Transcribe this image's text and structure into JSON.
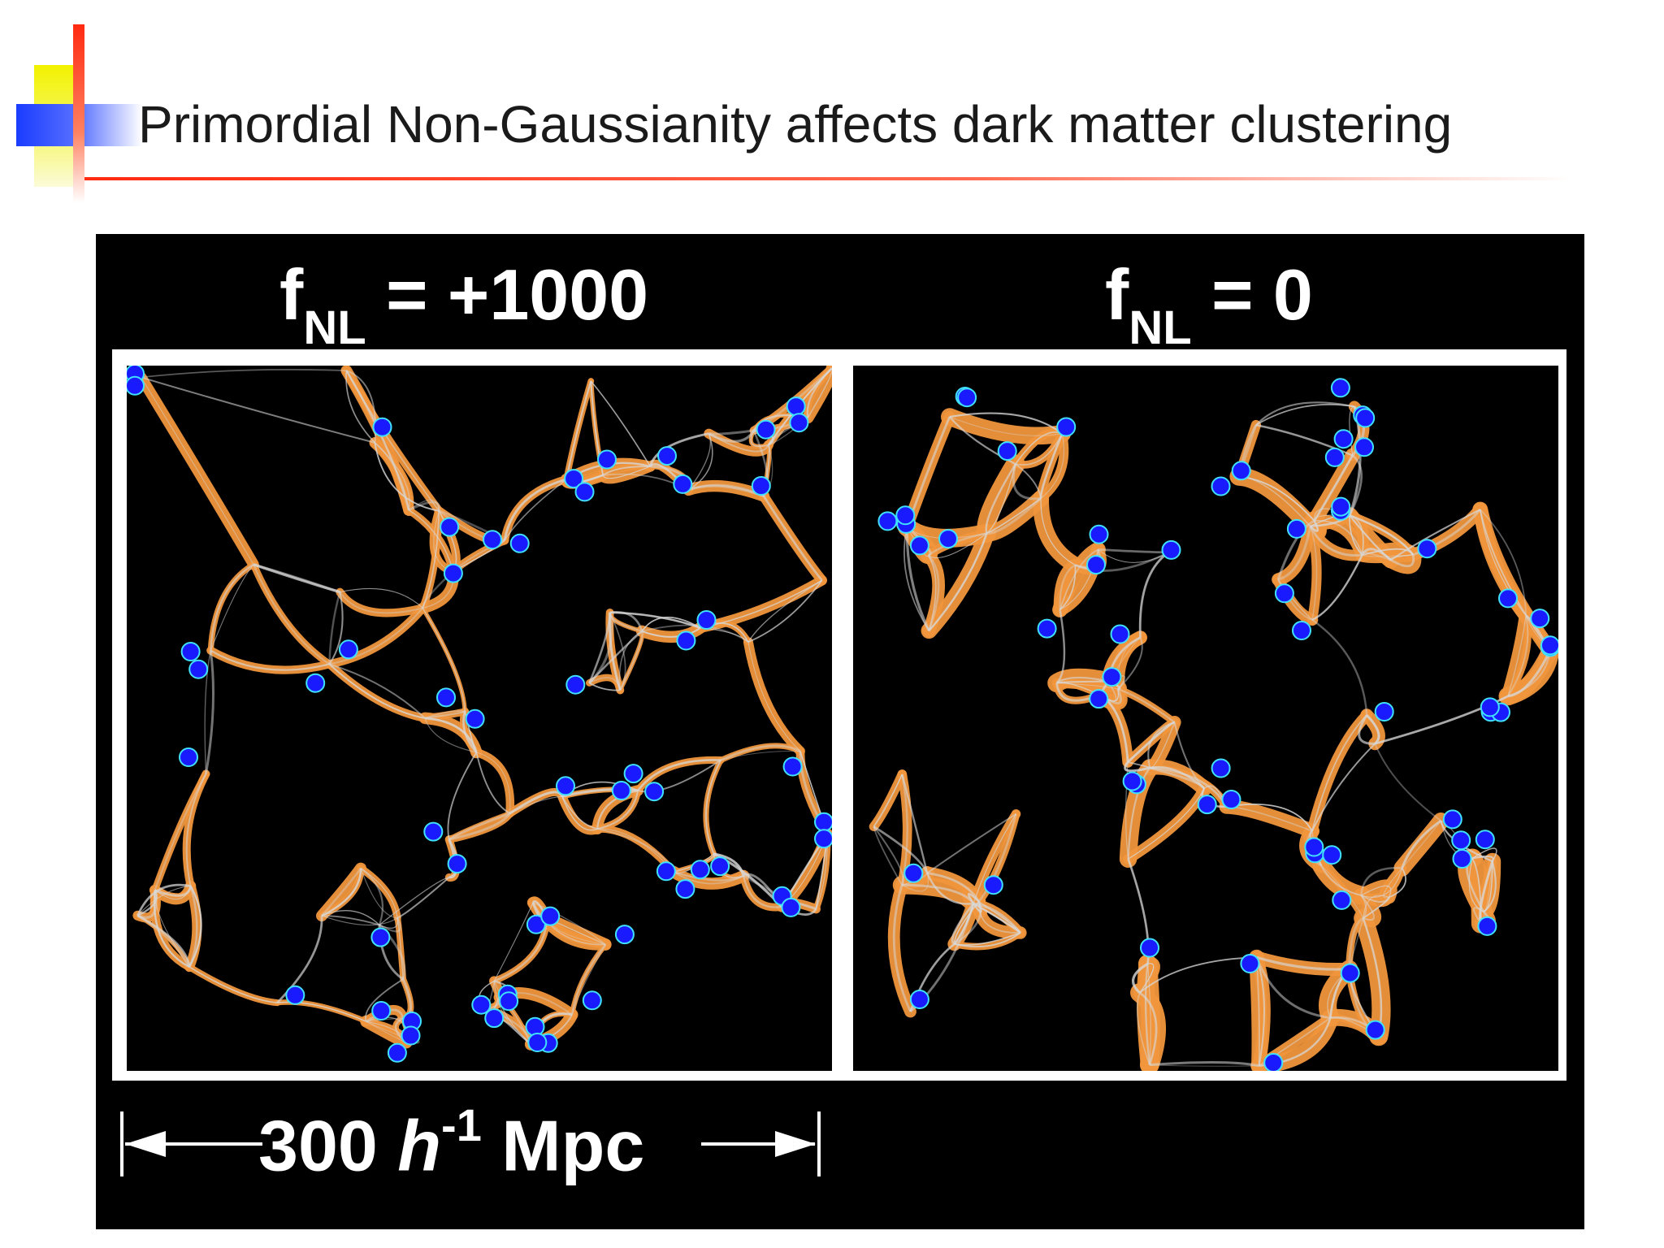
{
  "slide": {
    "title": "Primordial Non-Gaussianity affects dark matter clustering"
  },
  "figure": {
    "left_panel": {
      "title_main": "f",
      "title_sub": "NL",
      "title_rest": " = +1000"
    },
    "right_panel": {
      "title_main": "f",
      "title_sub": "NL",
      "title_rest": " = 0"
    },
    "scale_bar": {
      "value": "300",
      "h": "h",
      "exp": "-1",
      "unit": "Mpc"
    },
    "colors": {
      "background": "#000000",
      "filaments": "#d8d8d8",
      "overdensity_contour": "#f0963c",
      "halos": "#1a1aff",
      "halo_outline": "#40e0ff",
      "accent_red": "#ff2a10",
      "accent_yellow": "#f2f200",
      "accent_blue": "#1a3cff"
    }
  }
}
